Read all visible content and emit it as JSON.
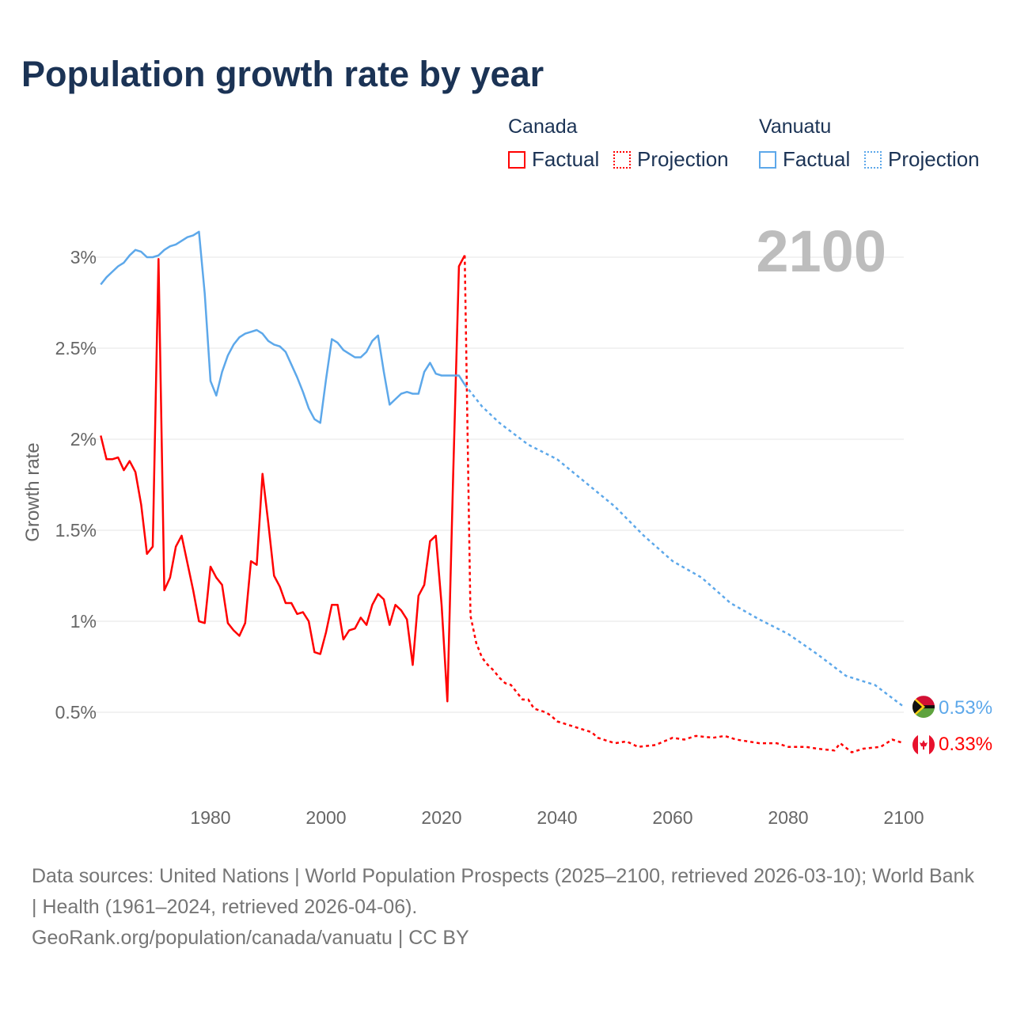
{
  "title": "Population growth rate by year",
  "legend": {
    "groups": [
      {
        "name": "Canada",
        "factual": "Factual",
        "projection": "Projection",
        "color": "#ff0000"
      },
      {
        "name": "Vanuatu",
        "factual": "Factual",
        "projection": "Projection",
        "color": "#5da8ea"
      }
    ]
  },
  "year_label": "2100",
  "end_labels": {
    "vanuatu": "0.53%",
    "canada": "0.33%"
  },
  "footer": {
    "line1": "Data sources: United Nations | World Population Prospects (2025–2100, retrieved 2026-03-10); World Bank | Health (1961–2024, retrieved 2026-04-06).",
    "line2": "GeoRank.org/population/canada/vanuatu | CC BY"
  },
  "chart_data": {
    "type": "line",
    "title": "Population growth rate by year",
    "xlabel": "",
    "ylabel": "Growth rate",
    "xlim": [
      1961,
      2100
    ],
    "ylim": [
      0.0,
      3.3
    ],
    "x_ticks": [
      1980,
      2000,
      2020,
      2040,
      2060,
      2080,
      2100
    ],
    "x_tick_labels": [
      "1980",
      "2000",
      "2020",
      "2040",
      "2060",
      "2080",
      "2100"
    ],
    "y_ticks": [
      0.5,
      1,
      1.5,
      2,
      2.5,
      3
    ],
    "y_tick_labels": [
      "0.5%",
      "1%",
      "1.5%",
      "2%",
      "2.5%",
      "3%"
    ],
    "grid": true,
    "legend_position": "top-right",
    "series": [
      {
        "name": "Canada Factual",
        "color": "#ff0000",
        "style": "solid",
        "x_start": 1961,
        "values": [
          2.02,
          1.89,
          1.89,
          1.9,
          1.83,
          1.88,
          1.82,
          1.64,
          1.37,
          1.41,
          2.99,
          1.17,
          1.24,
          1.41,
          1.47,
          1.32,
          1.17,
          1.0,
          0.99,
          1.3,
          1.24,
          1.2,
          0.99,
          0.95,
          0.92,
          0.99,
          1.33,
          1.31,
          1.81,
          1.54,
          1.25,
          1.19,
          1.1,
          1.1,
          1.04,
          1.05,
          1.0,
          0.83,
          0.82,
          0.94,
          1.09,
          1.09,
          0.9,
          0.95,
          0.96,
          1.02,
          0.98,
          1.09,
          1.15,
          1.12,
          0.98,
          1.09,
          1.06,
          1.01,
          0.76,
          1.14,
          1.2,
          1.44,
          1.47,
          1.09,
          0.56,
          1.8,
          2.95,
          3.01
        ]
      },
      {
        "name": "Canada Projection",
        "color": "#ff0000",
        "style": "dotted",
        "points": [
          [
            2024,
            3.01
          ],
          [
            2025,
            1.03
          ],
          [
            2026,
            0.88
          ],
          [
            2027,
            0.8
          ],
          [
            2028,
            0.76
          ],
          [
            2029,
            0.73
          ],
          [
            2030,
            0.69
          ],
          [
            2031,
            0.66
          ],
          [
            2032,
            0.65
          ],
          [
            2033,
            0.61
          ],
          [
            2034,
            0.57
          ],
          [
            2035,
            0.57
          ],
          [
            2036,
            0.52
          ],
          [
            2037,
            0.51
          ],
          [
            2038,
            0.5
          ],
          [
            2039,
            0.48
          ],
          [
            2040,
            0.45
          ],
          [
            2042,
            0.43
          ],
          [
            2044,
            0.41
          ],
          [
            2046,
            0.39
          ],
          [
            2047,
            0.36
          ],
          [
            2050,
            0.33
          ],
          [
            2052,
            0.34
          ],
          [
            2054,
            0.31
          ],
          [
            2057,
            0.32
          ],
          [
            2060,
            0.36
          ],
          [
            2062,
            0.35
          ],
          [
            2064,
            0.37
          ],
          [
            2067,
            0.36
          ],
          [
            2069,
            0.37
          ],
          [
            2071,
            0.35
          ],
          [
            2075,
            0.33
          ],
          [
            2078,
            0.33
          ],
          [
            2080,
            0.31
          ],
          [
            2083,
            0.31
          ],
          [
            2085,
            0.3
          ],
          [
            2088,
            0.29
          ],
          [
            2089,
            0.33
          ],
          [
            2091,
            0.28
          ],
          [
            2093,
            0.3
          ],
          [
            2096,
            0.31
          ],
          [
            2098,
            0.35
          ],
          [
            2100,
            0.33
          ]
        ]
      },
      {
        "name": "Vanuatu Factual",
        "color": "#5da8ea",
        "style": "solid",
        "x_start": 1961,
        "values": [
          2.85,
          2.89,
          2.92,
          2.95,
          2.97,
          3.01,
          3.04,
          3.03,
          3.0,
          3.0,
          3.01,
          3.04,
          3.06,
          3.07,
          3.09,
          3.11,
          3.12,
          3.14,
          2.8,
          2.32,
          2.24,
          2.37,
          2.46,
          2.52,
          2.56,
          2.58,
          2.59,
          2.6,
          2.58,
          2.54,
          2.52,
          2.51,
          2.48,
          2.41,
          2.34,
          2.26,
          2.17,
          2.11,
          2.09,
          2.33,
          2.55,
          2.53,
          2.49,
          2.47,
          2.45,
          2.45,
          2.48,
          2.54,
          2.57,
          2.37,
          2.19,
          2.22,
          2.25,
          2.26,
          2.25,
          2.25,
          2.37,
          2.42,
          2.36,
          2.35,
          2.35,
          2.35,
          2.35,
          2.3
        ]
      },
      {
        "name": "Vanuatu Projection",
        "color": "#5da8ea",
        "style": "dotted",
        "points": [
          [
            2024,
            2.3
          ],
          [
            2027,
            2.18
          ],
          [
            2030,
            2.09
          ],
          [
            2035,
            1.97
          ],
          [
            2040,
            1.89
          ],
          [
            2045,
            1.76
          ],
          [
            2050,
            1.63
          ],
          [
            2055,
            1.47
          ],
          [
            2060,
            1.33
          ],
          [
            2065,
            1.24
          ],
          [
            2070,
            1.1
          ],
          [
            2075,
            1.01
          ],
          [
            2080,
            0.93
          ],
          [
            2085,
            0.82
          ],
          [
            2090,
            0.7
          ],
          [
            2095,
            0.65
          ],
          [
            2100,
            0.53
          ]
        ]
      }
    ]
  }
}
